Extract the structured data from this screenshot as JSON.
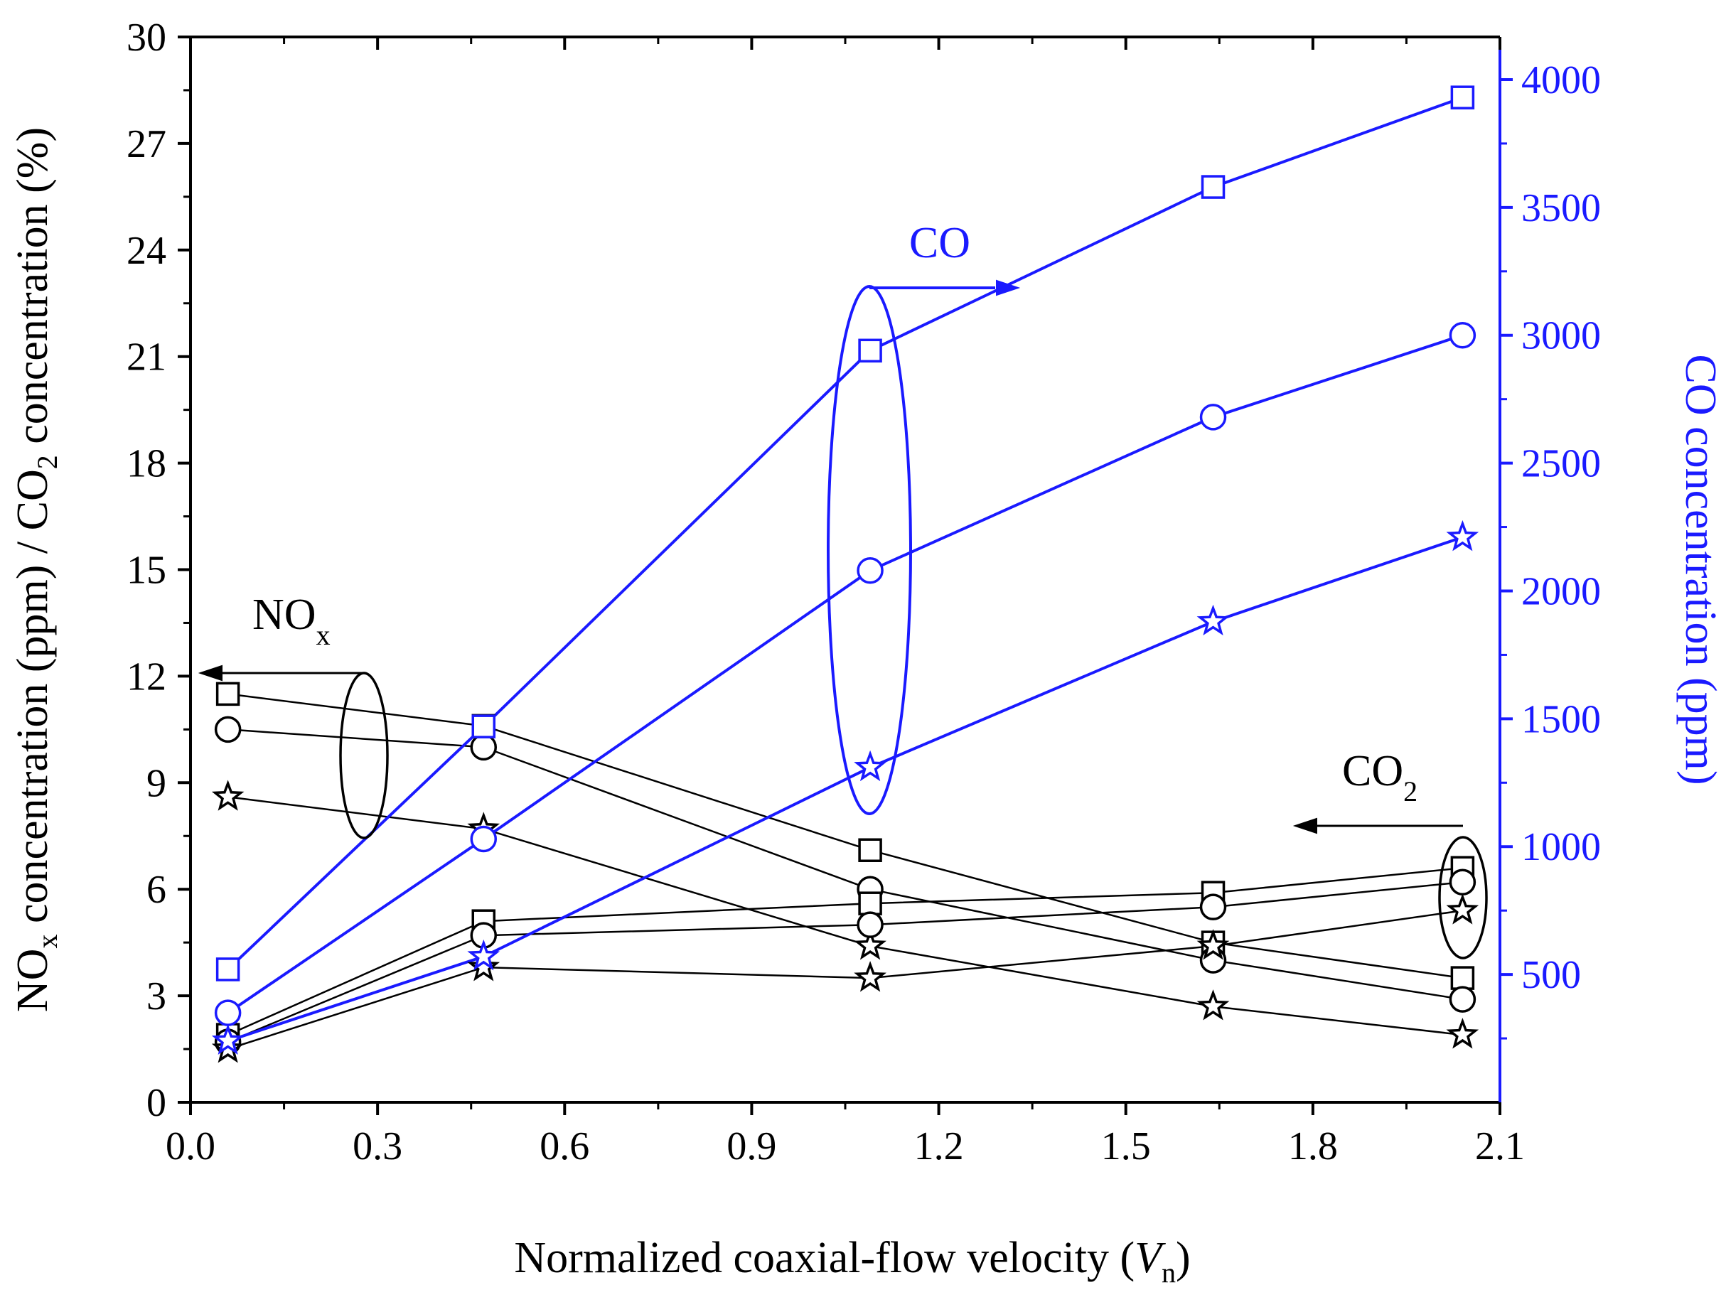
{
  "chart_data": {
    "type": "line",
    "xlabel": "Normalized coaxial-flow velocity (",
    "xlabel_var": "V",
    "xlabel_sub": "n",
    "xlabel_end": ")",
    "ylabel_left_parts": [
      "NO",
      "x",
      " concentration (ppm) / CO",
      "2",
      " concentration (%)"
    ],
    "ylabel_right": "CO concentration (ppm)",
    "xlim": [
      0.0,
      2.1
    ],
    "ylim_left": [
      0,
      30
    ],
    "ylim_right": [
      0,
      4166.7
    ],
    "x_ticks": [
      "0.0",
      "0.3",
      "0.6",
      "0.9",
      "1.2",
      "1.5",
      "1.8",
      "2.1"
    ],
    "y_left_ticks": [
      "0",
      "3",
      "6",
      "9",
      "12",
      "15",
      "18",
      "21",
      "24",
      "27",
      "30"
    ],
    "y_right_ticks": [
      "500",
      "1000",
      "1500",
      "2000",
      "2500",
      "3000",
      "3500",
      "4000"
    ],
    "x": [
      0.06,
      0.47,
      1.09,
      1.64,
      2.04
    ],
    "series": [
      {
        "name": "NOx (square)",
        "axis": "left",
        "group": "NOx",
        "marker": "square",
        "color": "#000000",
        "values": [
          11.5,
          10.6,
          7.1,
          4.5,
          3.5
        ]
      },
      {
        "name": "NOx (circle)",
        "axis": "left",
        "group": "NOx",
        "marker": "circle",
        "color": "#000000",
        "values": [
          10.5,
          10.0,
          6.0,
          4.0,
          2.9
        ]
      },
      {
        "name": "NOx (star)",
        "axis": "left",
        "group": "NOx",
        "marker": "star",
        "color": "#000000",
        "values": [
          8.6,
          7.7,
          4.4,
          2.7,
          1.9
        ]
      },
      {
        "name": "CO2 (square)",
        "axis": "left",
        "group": "CO2",
        "marker": "square",
        "color": "#000000",
        "values": [
          1.9,
          5.1,
          5.6,
          5.9,
          6.6
        ]
      },
      {
        "name": "CO2 (circle)",
        "axis": "left",
        "group": "CO2",
        "marker": "circle",
        "color": "#000000",
        "values": [
          1.7,
          4.7,
          5.0,
          5.5,
          6.2
        ]
      },
      {
        "name": "CO2 (star)",
        "axis": "left",
        "group": "CO2",
        "marker": "star",
        "color": "#000000",
        "values": [
          1.5,
          3.8,
          3.5,
          4.4,
          5.4
        ]
      },
      {
        "name": "CO (square)",
        "axis": "right",
        "group": "CO",
        "marker": "square",
        "color": "#1a1aff",
        "values": [
          520,
          1470,
          2940,
          3580,
          3930
        ]
      },
      {
        "name": "CO (circle)",
        "axis": "right",
        "group": "CO",
        "marker": "circle",
        "color": "#1a1aff",
        "values": [
          350,
          1030,
          2080,
          2680,
          3000
        ]
      },
      {
        "name": "CO (star)",
        "axis": "right",
        "group": "CO",
        "marker": "star",
        "color": "#1a1aff",
        "values": [
          240,
          570,
          1310,
          1880,
          2210
        ]
      }
    ],
    "annotations": [
      {
        "text": "NO",
        "sub": "x",
        "group": "NOx",
        "arrow": "left"
      },
      {
        "text": "CO",
        "sub": "2",
        "group": "CO2",
        "arrow": "left"
      },
      {
        "text": "CO",
        "sub": "",
        "group": "CO",
        "arrow": "right"
      }
    ]
  }
}
